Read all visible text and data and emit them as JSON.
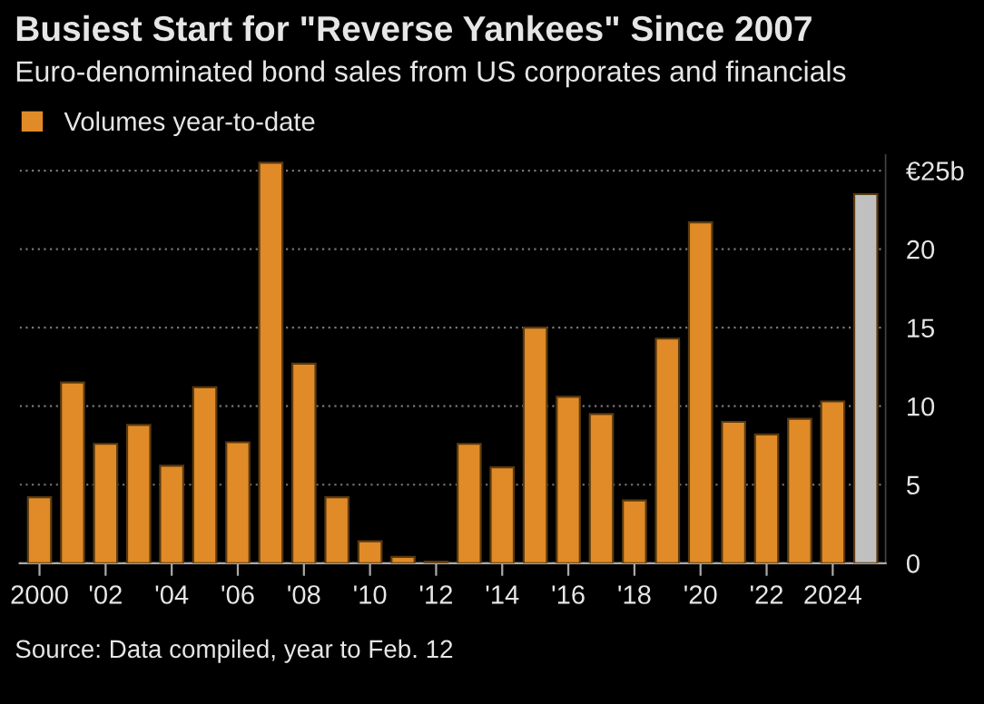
{
  "chart_data": {
    "type": "bar",
    "title": "Busiest Start for \"Reverse Yankees\" Since 2007",
    "subtitle": "Euro-denominated bond sales from US corporates and financials",
    "annotations": [
      "Source: Data compiled, year to Feb. 12"
    ],
    "categories": [
      "2000",
      null,
      "'02",
      null,
      "'04",
      null,
      "'06",
      null,
      "'08",
      null,
      "'10",
      null,
      "'12",
      null,
      "'14",
      null,
      "'16",
      null,
      "'18",
      null,
      "'20",
      null,
      "'22",
      null,
      "2024",
      null
    ],
    "series": [
      {
        "name": "Volumes year-to-date",
        "color": "#e08b27",
        "values": [
          4.2,
          11.5,
          7.6,
          8.8,
          6.2,
          11.2,
          7.7,
          25.5,
          12.7,
          4.2,
          1.4,
          0.4,
          0.1,
          7.6,
          6.1,
          15.0,
          10.6,
          9.5,
          4.0,
          14.3,
          21.7,
          9.0,
          8.2,
          9.2,
          10.3,
          23.5
        ],
        "colors": [
          "#e08b27",
          "#e08b27",
          "#e08b27",
          "#e08b27",
          "#e08b27",
          "#e08b27",
          "#e08b27",
          "#e08b27",
          "#e08b27",
          "#e08b27",
          "#e08b27",
          "#e08b27",
          "#e08b27",
          "#e08b27",
          "#e08b27",
          "#e08b27",
          "#e08b27",
          "#e08b27",
          "#e08b27",
          "#e08b27",
          "#e08b27",
          "#e08b27",
          "#e08b27",
          "#e08b27",
          "#e08b27",
          "#c0c0c0"
        ]
      }
    ],
    "ylim": [
      0,
      26
    ],
    "yticks": [
      0,
      5,
      10,
      15,
      20,
      {
        "value": 25,
        "label": "€25b"
      }
    ],
    "grid": "y",
    "legend": "top left"
  }
}
